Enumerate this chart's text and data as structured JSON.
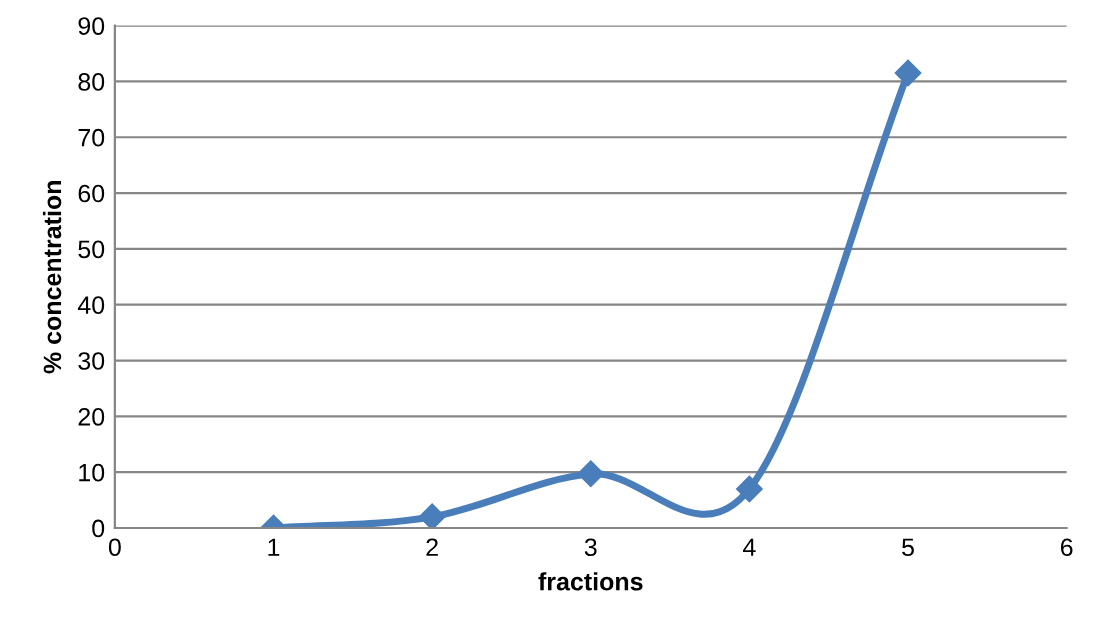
{
  "chart_data": {
    "type": "line",
    "xlabel": "fractions",
    "ylabel": "% concentration",
    "x": [
      1,
      2,
      3,
      4,
      5
    ],
    "series": [
      {
        "color": "#4a7ebb",
        "values": [
          0,
          2,
          9.7,
          7,
          81.5
        ]
      }
    ],
    "xlim": [
      0,
      6
    ],
    "xticks": [
      0,
      1,
      2,
      3,
      4,
      5,
      6
    ],
    "ylim": [
      0,
      90
    ],
    "yticks": [
      0,
      10,
      20,
      30,
      40,
      50,
      60,
      70,
      80,
      90
    ],
    "grid": "y",
    "marker": "diamond",
    "line_style": "solid",
    "legend": false
  }
}
